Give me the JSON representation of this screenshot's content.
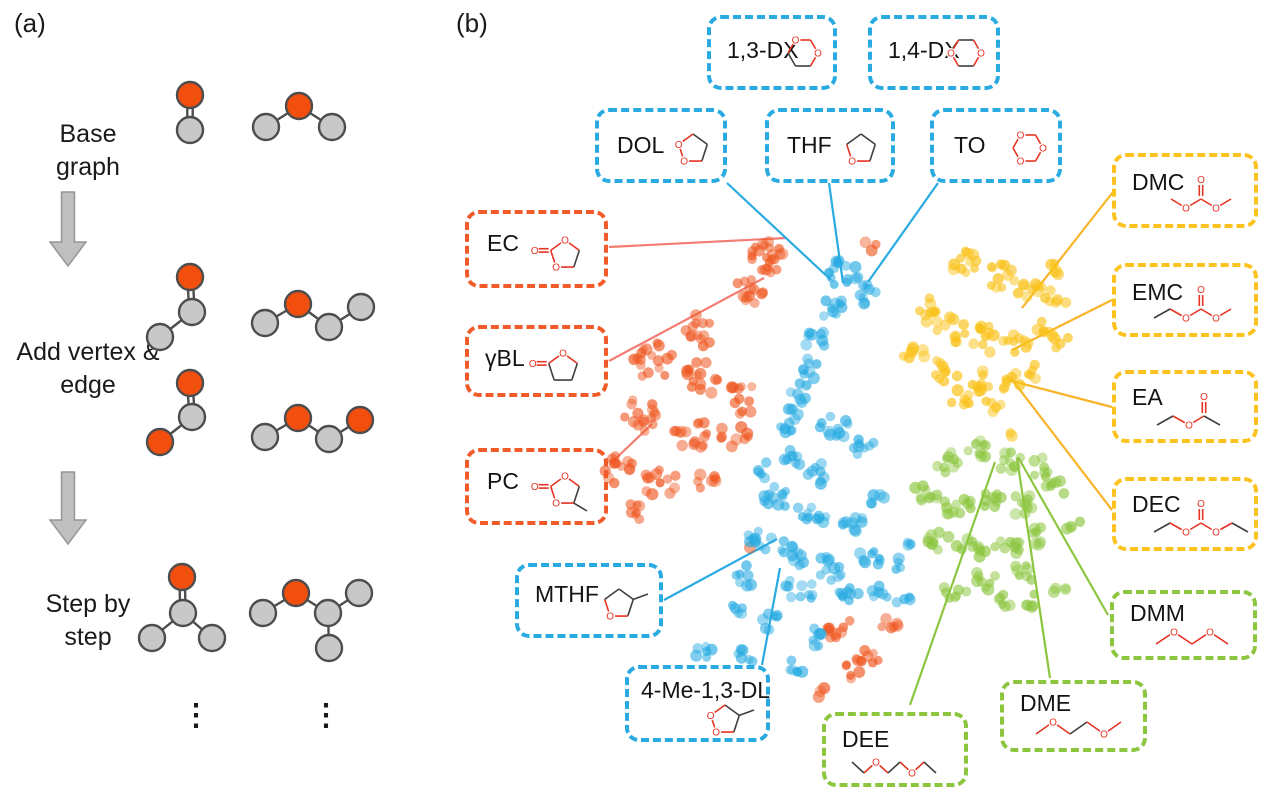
{
  "figure": {
    "panel_a_tag": "(a)",
    "panel_b_tag": "(b)"
  },
  "panel_a": {
    "steps": [
      {
        "label": "Base graph"
      },
      {
        "label": "Add vertex & edge"
      },
      {
        "label": "Step by step"
      }
    ],
    "ellipsis": "⋮",
    "node_colors": {
      "highlight": "#f24e0d",
      "default": "#c8c8c8"
    },
    "arrow_color": "#bfbfbf"
  },
  "panel_b": {
    "groups": [
      {
        "name": "orange-cluster",
        "color": "#f15a29",
        "line_color": "#f47c72",
        "members": [
          "EC",
          "γBL",
          "PC"
        ]
      },
      {
        "name": "blue-cluster",
        "color": "#29abe2",
        "line_color": "#29abe2",
        "members": [
          "1,3-DX",
          "1,4-DX",
          "DOL",
          "THF",
          "TO",
          "MTHF",
          "4-Me-1,3-DL"
        ]
      },
      {
        "name": "yellow-cluster",
        "color": "#fcc21f",
        "line_color": "#f7b428",
        "members": [
          "DMC",
          "EMC",
          "EA",
          "DEC"
        ]
      },
      {
        "name": "green-cluster",
        "color": "#8cc63f",
        "line_color": "#8cc63f",
        "members": [
          "DMM",
          "DME",
          "DEE"
        ]
      }
    ],
    "molecules": {
      "b13dx": "1,3-DX",
      "b14dx": "1,4-DX",
      "dol": "DOL",
      "thf": "THF",
      "to": "TO",
      "ec": "EC",
      "gbl": "γBL",
      "pc": "PC",
      "mthf": "MTHF",
      "me13dl": "4-Me-1,3-DL",
      "dmc": "DMC",
      "emc": "EMC",
      "ea": "EA",
      "dec": "DEC",
      "dmm": "DMM",
      "dme": "DME",
      "dee": "DEE"
    }
  },
  "chart_data": {
    "type": "scatter",
    "title": "",
    "xlabel": "",
    "ylabel": "",
    "axes_visible": false,
    "note": "2D embedding scatter; point positions estimated in screenshot pixel coordinates as gaussian blobs [cx, cy, spread, count]",
    "clusters": [
      {
        "label": "orange",
        "color": "#ef5721",
        "opacity": 0.55,
        "linked_molecules": [
          "EC",
          "γBL",
          "PC"
        ],
        "blobs": [
          [
            770,
            258,
            20,
            22
          ],
          [
            748,
            293,
            16,
            12
          ],
          [
            700,
            330,
            18,
            13
          ],
          [
            652,
            360,
            22,
            17
          ],
          [
            706,
            376,
            20,
            15
          ],
          [
            744,
            398,
            18,
            12
          ],
          [
            640,
            416,
            20,
            15
          ],
          [
            690,
            432,
            20,
            15
          ],
          [
            734,
            436,
            15,
            9
          ],
          [
            622,
            470,
            18,
            13
          ],
          [
            660,
            483,
            18,
            13
          ],
          [
            706,
            482,
            13,
            7
          ],
          [
            641,
            510,
            13,
            7
          ],
          [
            870,
            246,
            9,
            3
          ],
          [
            752,
            549,
            3,
            1
          ],
          [
            840,
            630,
            15,
            9
          ],
          [
            868,
            652,
            14,
            9
          ],
          [
            888,
            625,
            10,
            6
          ],
          [
            850,
            672,
            10,
            5
          ],
          [
            820,
            690,
            8,
            3
          ]
        ]
      },
      {
        "label": "blue",
        "color": "#29abe2",
        "opacity": 0.55,
        "linked_molecules": [
          "1,3-DX",
          "1,4-DX",
          "DOL",
          "THF",
          "TO",
          "MTHF",
          "4-Me-1,3-DL"
        ],
        "blobs": [
          [
            845,
            272,
            18,
            15
          ],
          [
            868,
            293,
            14,
            9
          ],
          [
            833,
            309,
            13,
            9
          ],
          [
            816,
            339,
            12,
            8
          ],
          [
            812,
            368,
            12,
            8
          ],
          [
            801,
            394,
            12,
            8
          ],
          [
            788,
            420,
            14,
            10
          ],
          [
            835,
            428,
            16,
            11
          ],
          [
            862,
            447,
            13,
            8
          ],
          [
            796,
            455,
            13,
            8
          ],
          [
            820,
            474,
            13,
            8
          ],
          [
            776,
            500,
            16,
            11
          ],
          [
            812,
            515,
            16,
            11
          ],
          [
            850,
            520,
            14,
            9
          ],
          [
            760,
            540,
            13,
            9
          ],
          [
            792,
            553,
            16,
            11
          ],
          [
            830,
            566,
            16,
            11
          ],
          [
            868,
            558,
            13,
            8
          ],
          [
            746,
            576,
            12,
            7
          ],
          [
            800,
            590,
            15,
            10
          ],
          [
            845,
            598,
            14,
            9
          ],
          [
            880,
            590,
            12,
            6
          ],
          [
            903,
            600,
            9,
            4
          ],
          [
            770,
            620,
            12,
            7
          ],
          [
            820,
            636,
            12,
            7
          ],
          [
            703,
            650,
            10,
            6
          ],
          [
            745,
            656,
            10,
            6
          ],
          [
            795,
            666,
            10,
            6
          ],
          [
            900,
            565,
            9,
            4
          ],
          [
            910,
            540,
            8,
            3
          ],
          [
            880,
            500,
            10,
            5
          ],
          [
            762,
            470,
            10,
            5
          ],
          [
            735,
            610,
            10,
            5
          ]
        ]
      },
      {
        "label": "yellow",
        "color": "#f9c21a",
        "opacity": 0.6,
        "linked_molecules": [
          "DMC",
          "EMC",
          "EA",
          "DEC"
        ],
        "blobs": [
          [
            965,
            262,
            16,
            11
          ],
          [
            1000,
            275,
            16,
            11
          ],
          [
            1030,
            292,
            14,
            9
          ],
          [
            1055,
            300,
            12,
            6
          ],
          [
            925,
            310,
            14,
            9
          ],
          [
            950,
            330,
            16,
            11
          ],
          [
            985,
            340,
            16,
            11
          ],
          [
            1015,
            345,
            14,
            9
          ],
          [
            1042,
            330,
            12,
            6
          ],
          [
            915,
            355,
            12,
            7
          ],
          [
            945,
            370,
            14,
            9
          ],
          [
            978,
            380,
            14,
            9
          ],
          [
            1010,
            382,
            12,
            7
          ],
          [
            1035,
            370,
            10,
            5
          ],
          [
            960,
            400,
            12,
            7
          ],
          [
            995,
            405,
            10,
            5
          ],
          [
            1012,
            437,
            5,
            2
          ],
          [
            1062,
            342,
            9,
            4
          ],
          [
            1058,
            270,
            10,
            5
          ]
        ]
      },
      {
        "label": "green",
        "color": "#8cc63f",
        "opacity": 0.55,
        "linked_molecules": [
          "DMM",
          "DME",
          "DEE"
        ],
        "blobs": [
          [
            945,
            462,
            14,
            9
          ],
          [
            975,
            452,
            14,
            9
          ],
          [
            1008,
            458,
            14,
            9
          ],
          [
            1040,
            468,
            12,
            7
          ],
          [
            925,
            495,
            14,
            9
          ],
          [
            958,
            505,
            16,
            11
          ],
          [
            992,
            498,
            14,
            9
          ],
          [
            1025,
            505,
            14,
            9
          ],
          [
            1056,
            490,
            12,
            6
          ],
          [
            938,
            540,
            14,
            9
          ],
          [
            972,
            548,
            16,
            11
          ],
          [
            1008,
            545,
            14,
            9
          ],
          [
            1040,
            535,
            12,
            7
          ],
          [
            988,
            578,
            13,
            8
          ],
          [
            1022,
            575,
            12,
            7
          ],
          [
            955,
            590,
            12,
            7
          ],
          [
            1000,
            602,
            11,
            6
          ],
          [
            1032,
            600,
            10,
            5
          ],
          [
            1058,
            588,
            9,
            4
          ],
          [
            1072,
            525,
            9,
            4
          ]
        ]
      }
    ]
  }
}
